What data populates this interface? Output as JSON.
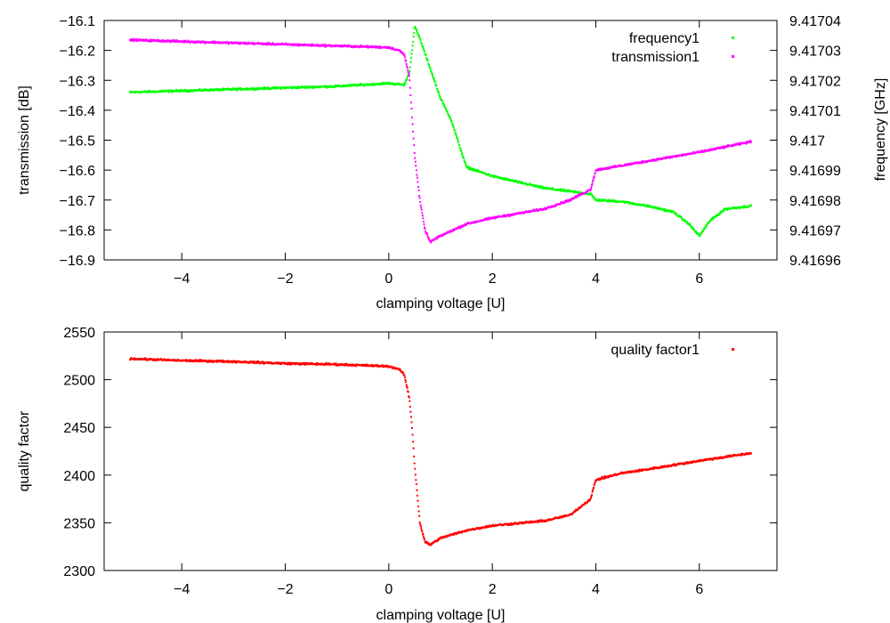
{
  "chart_data": [
    {
      "type": "scatter",
      "title": "",
      "xlabel": "clamping voltage [U]",
      "ylabel": "transmission [dB]",
      "ylabel2": "frequency [GHz]",
      "xlim": [
        -5.5,
        7.5
      ],
      "ylim": [
        -16.9,
        -16.1
      ],
      "y2lim": [
        9.41696,
        9.41704
      ],
      "xticks": [
        "-4",
        "-2",
        "0",
        "2",
        "4",
        "6"
      ],
      "yticks": [
        "-16.1",
        "-16.2",
        "-16.3",
        "-16.4",
        "-16.5",
        "-16.6",
        "-16.7",
        "-16.8",
        "-16.9"
      ],
      "y2ticks": [
        "9.41704",
        "9.41703",
        "9.41702",
        "9.41701",
        "9.417",
        "9.41699",
        "9.41698",
        "9.41697",
        "9.41696"
      ],
      "legend_position": "top-right",
      "series": [
        {
          "name": "frequency1",
          "axis": "right",
          "color": "#00ff00",
          "x": [
            -5,
            -4,
            -3,
            -2,
            -1,
            0,
            0.3,
            0.4,
            0.5,
            0.6,
            0.8,
            1,
            1.2,
            1.5,
            2,
            3,
            3.9,
            4,
            4.5,
            5,
            5.5,
            5.8,
            6,
            6.2,
            6.5,
            7
          ],
          "y": [
            9.417016,
            9.4170165,
            9.417017,
            9.4170175,
            9.417018,
            9.417019,
            9.4170185,
            9.4170225,
            9.417038,
            9.417034,
            9.417024,
            9.417014,
            9.417007,
            9.416991,
            9.416988,
            9.416984,
            9.416982,
            9.41698,
            9.4169795,
            9.416978,
            9.416976,
            9.416972,
            9.416968,
            9.416973,
            9.416977,
            9.416978
          ]
        },
        {
          "name": "transmission1",
          "axis": "left",
          "color": "#ff00ff",
          "x": [
            -5,
            -4,
            -3,
            -2,
            -1,
            0,
            0.2,
            0.3,
            0.4,
            0.45,
            0.5,
            0.6,
            0.7,
            0.8,
            1,
            1.5,
            2,
            3,
            3.5,
            3.9,
            4,
            4.5,
            5,
            6,
            7
          ],
          "y": [
            -16.165,
            -16.17,
            -16.175,
            -16.18,
            -16.185,
            -16.19,
            -16.2,
            -16.215,
            -16.29,
            -16.42,
            -16.55,
            -16.7,
            -16.8,
            -16.84,
            -16.82,
            -16.78,
            -16.76,
            -16.73,
            -16.7,
            -16.665,
            -16.6,
            -16.585,
            -16.57,
            -16.54,
            -16.505
          ]
        }
      ]
    },
    {
      "type": "scatter",
      "title": "",
      "xlabel": "clamping voltage [U]",
      "ylabel": "quality factor",
      "xlim": [
        -5.5,
        7.5
      ],
      "ylim": [
        2300,
        2550
      ],
      "xticks": [
        "-4",
        "-2",
        "0",
        "2",
        "4",
        "6"
      ],
      "yticks": [
        "2550",
        "2500",
        "2450",
        "2400",
        "2350",
        "2300"
      ],
      "legend_position": "top-right",
      "series": [
        {
          "name": "quality factor1",
          "color": "#ff0000",
          "x": [
            -5,
            -4,
            -3,
            -2,
            -1,
            0,
            0.2,
            0.3,
            0.4,
            0.45,
            0.5,
            0.55,
            0.6,
            0.7,
            0.8,
            1,
            1.5,
            2,
            3,
            3.5,
            3.9,
            4,
            4.5,
            5,
            6,
            7
          ],
          "y": [
            2522,
            2520,
            2519,
            2517,
            2516,
            2514,
            2511,
            2505,
            2480,
            2450,
            2410,
            2380,
            2350,
            2330,
            2327,
            2334,
            2342,
            2347,
            2352,
            2358,
            2375,
            2395,
            2402,
            2406,
            2415,
            2423
          ]
        }
      ]
    }
  ]
}
